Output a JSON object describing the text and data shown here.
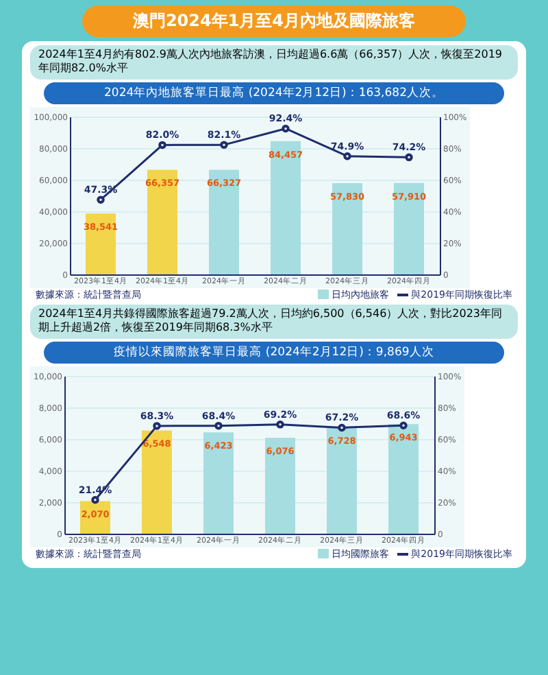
{
  "chart_data": [
    {
      "type": "bar",
      "title": "澳門2024年1月至4月內地及國際旅客",
      "subtitle": "2024年1至4月約有802.9萬人次內地旅客訪澳，日均超過6.6萬（66,357）人次，恢復至2019年同期82.0%水平",
      "annotations": [
        "2024年內地旅客單日最高 (2024年2月12日)：163,682人次。",
        "數據來源：統計暨普查局"
      ],
      "categories": [
        "2023年1至4月",
        "2024年1至4月",
        "2024年一月",
        "2024年二月",
        "2024年三月",
        "2024年四月"
      ],
      "series": [
        {
          "name": "日均內地旅客",
          "type": "bar",
          "colors": [
            "#f2d54a",
            "#f2d54a",
            "#a6dde0",
            "#a6dde0",
            "#a6dde0",
            "#a6dde0"
          ],
          "values": [
            38541,
            66357,
            66327,
            84457,
            57830,
            57910
          ],
          "value_labels": [
            "38,541",
            "66,357",
            "66,327",
            "84,457",
            "57,830",
            "57,910"
          ]
        },
        {
          "name": "與2019年同期恢復比率",
          "type": "line",
          "axis": "y2",
          "color": "#1f2d6b",
          "values": [
            47.3,
            82.0,
            82.1,
            92.4,
            74.9,
            74.2
          ],
          "value_labels": [
            "47.3%",
            "82.0%",
            "82.1%",
            "92.4%",
            "74.9%",
            "74.2%"
          ]
        }
      ],
      "ylim": [
        0,
        100000
      ],
      "yticks": [
        0,
        {
          "value": 20000,
          "label": "20,000"
        },
        {
          "value": 40000,
          "label": "40,000"
        },
        {
          "value": 60000,
          "label": "60,000"
        },
        {
          "value": 80000,
          "label": "80,000"
        },
        {
          "value": 100000,
          "label": "100,000"
        }
      ],
      "y2lim": [
        0,
        100
      ],
      "y2ticks": [
        {
          "value": 0,
          "label": "0"
        },
        {
          "value": 20,
          "label": "20%"
        },
        {
          "value": 40,
          "label": "40%"
        },
        {
          "value": 60,
          "label": "60%"
        },
        {
          "value": 80,
          "label": "80%"
        },
        {
          "value": 100,
          "label": "100%"
        }
      ],
      "grid": "y",
      "legend": "bottom",
      "marker": "circle"
    },
    {
      "type": "bar",
      "subtitle": "2024年1至4月共錄得國際旅客超過79.2萬人次，日均約6,500（6,546）人次，對比2023年同期上升超過2倍，恢復至2019年同期68.3%水平",
      "annotations": [
        "疫情以來國際旅客單日最高 (2024年2月12日)：9,869人次",
        "數據來源：統計暨普查局"
      ],
      "categories": [
        "2023年1至4月",
        "2024年1至4月",
        "2024年一月",
        "2024年二月",
        "2024年三月",
        "2024年四月"
      ],
      "series": [
        {
          "name": "日均國際旅客",
          "type": "bar",
          "colors": [
            "#f2d54a",
            "#f2d54a",
            "#a6dde0",
            "#a6dde0",
            "#a6dde0",
            "#a6dde0"
          ],
          "values": [
            2070,
            6548,
            6423,
            6076,
            6728,
            6943
          ],
          "value_labels": [
            "2,070",
            "6,548",
            "6,423",
            "6,076",
            "6,728",
            "6,943"
          ]
        },
        {
          "name": "與2019年同期恢復比率",
          "type": "line",
          "axis": "y2",
          "color": "#1f2d6b",
          "values": [
            21.4,
            68.3,
            68.4,
            69.2,
            67.2,
            68.6
          ],
          "value_labels": [
            "21.4%",
            "68.3%",
            "68.4%",
            "69.2%",
            "67.2%",
            "68.6%"
          ]
        }
      ],
      "ylim": [
        0,
        10000
      ],
      "yticks": [
        0,
        {
          "value": 2000,
          "label": "2,000"
        },
        {
          "value": 4000,
          "label": "4,000"
        },
        {
          "value": 6000,
          "label": "6,000"
        },
        {
          "value": 8000,
          "label": "8,000"
        },
        {
          "value": 10000,
          "label": "10,000"
        }
      ],
      "y2lim": [
        0,
        100
      ],
      "y2ticks": [
        {
          "value": 0,
          "label": "0"
        },
        {
          "value": 20,
          "label": "20%"
        },
        {
          "value": 40,
          "label": "40%"
        },
        {
          "value": 60,
          "label": "60%"
        },
        {
          "value": 80,
          "label": "80%"
        },
        {
          "value": 100,
          "label": "100%"
        }
      ],
      "grid": "y",
      "legend": "bottom",
      "marker": "circle"
    }
  ]
}
